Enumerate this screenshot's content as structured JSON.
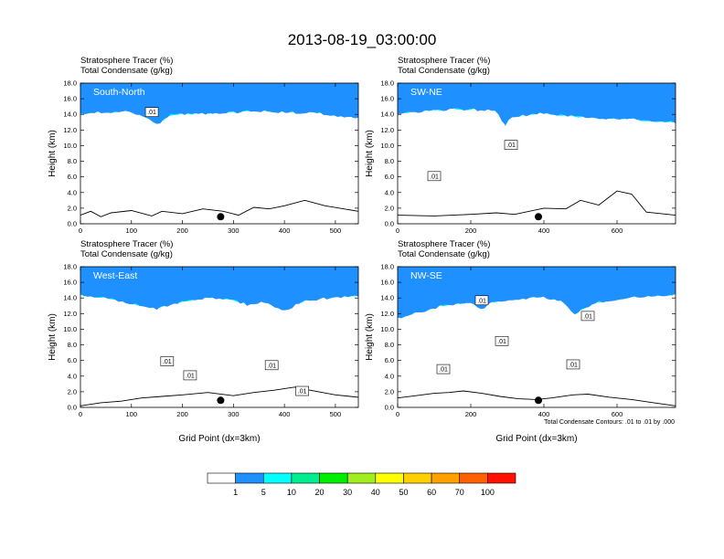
{
  "title": "2013-08-19_03:00:00",
  "chart_data": [
    {
      "type": "contour",
      "panel_name": "South-North",
      "header_line1": "Stratosphere Tracer   (%)",
      "header_line2": "Total Condensate   (g/kg)",
      "ylabel": "Height (km)",
      "xlabel": "",
      "xlim": [
        0,
        545
      ],
      "ylim": [
        0,
        18
      ],
      "xticks": [
        0,
        100,
        200,
        300,
        400,
        500
      ],
      "yticks": [
        "0.0",
        "2.0",
        "4.0",
        "6.0",
        "8.0",
        "10.0",
        "12.0",
        "14.0",
        "16.0",
        "18.0"
      ],
      "marker_x": 275,
      "tracer_base_km": [
        [
          0,
          14.0
        ],
        [
          40,
          14.2
        ],
        [
          90,
          14.4
        ],
        [
          120,
          13.9
        ],
        [
          150,
          12.6
        ],
        [
          175,
          13.9
        ],
        [
          250,
          14.1
        ],
        [
          300,
          14.2
        ],
        [
          350,
          14.4
        ],
        [
          410,
          14.2
        ],
        [
          450,
          14.2
        ],
        [
          500,
          13.8
        ],
        [
          545,
          13.6
        ]
      ],
      "terrain_km": [
        [
          0,
          1.1
        ],
        [
          20,
          1.6
        ],
        [
          40,
          0.9
        ],
        [
          60,
          1.4
        ],
        [
          100,
          1.7
        ],
        [
          140,
          1.0
        ],
        [
          160,
          1.6
        ],
        [
          200,
          1.3
        ],
        [
          240,
          1.9
        ],
        [
          280,
          1.6
        ],
        [
          310,
          1.1
        ],
        [
          340,
          2.1
        ],
        [
          370,
          1.9
        ],
        [
          400,
          2.3
        ],
        [
          440,
          3.0
        ],
        [
          480,
          2.3
        ],
        [
          545,
          1.6
        ]
      ],
      "contour_labels": [
        {
          "x": 140,
          "km": 14.3,
          "text": ".01"
        }
      ]
    },
    {
      "type": "contour",
      "panel_name": "SW-NE",
      "header_line1": "Stratosphere Tracer   (%)",
      "header_line2": "Total Condensate   (g/kg)",
      "ylabel": "Height (km)",
      "xlabel": "",
      "xlim": [
        0,
        760
      ],
      "ylim": [
        0,
        18
      ],
      "xticks": [
        0,
        200,
        400,
        600
      ],
      "yticks": [
        "0.0",
        "2.0",
        "4.0",
        "6.0",
        "8.0",
        "10.0",
        "12.0",
        "14.0",
        "16.0",
        "18.0"
      ],
      "marker_x": 385,
      "tracer_base_km": [
        [
          0,
          14.1
        ],
        [
          150,
          14.6
        ],
        [
          270,
          14.5
        ],
        [
          295,
          12.4
        ],
        [
          310,
          13.6
        ],
        [
          400,
          14.1
        ],
        [
          500,
          13.6
        ],
        [
          600,
          13.4
        ],
        [
          700,
          13.1
        ],
        [
          760,
          12.9
        ]
      ],
      "terrain_km": [
        [
          0,
          1.1
        ],
        [
          100,
          1.0
        ],
        [
          200,
          1.2
        ],
        [
          270,
          1.4
        ],
        [
          320,
          1.2
        ],
        [
          400,
          2.0
        ],
        [
          460,
          1.9
        ],
        [
          500,
          3.0
        ],
        [
          550,
          2.4
        ],
        [
          600,
          4.2
        ],
        [
          640,
          3.8
        ],
        [
          680,
          1.5
        ],
        [
          760,
          1.1
        ]
      ],
      "contour_labels": [
        {
          "x": 310,
          "km": 10.1,
          "text": ".01"
        },
        {
          "x": 100,
          "km": 6.1,
          "text": ".01"
        }
      ]
    },
    {
      "type": "contour",
      "panel_name": "West-East",
      "header_line1": "Stratosphere Tracer   (%)",
      "header_line2": "Total Condensate   (g/kg)",
      "ylabel": "Height (km)",
      "xlabel": "Grid Point (dx=3km)",
      "xlim": [
        0,
        545
      ],
      "ylim": [
        0,
        18
      ],
      "xticks": [
        0,
        100,
        200,
        300,
        400,
        500
      ],
      "yticks": [
        "0.0",
        "2.0",
        "4.0",
        "6.0",
        "8.0",
        "10.0",
        "12.0",
        "14.0",
        "16.0",
        "18.0"
      ],
      "marker_x": 275,
      "tracer_base_km": [
        [
          0,
          14.3
        ],
        [
          60,
          13.8
        ],
        [
          110,
          13.1
        ],
        [
          150,
          12.6
        ],
        [
          200,
          13.5
        ],
        [
          260,
          14.0
        ],
        [
          300,
          13.7
        ],
        [
          330,
          13.0
        ],
        [
          360,
          13.5
        ],
        [
          400,
          12.3
        ],
        [
          440,
          13.6
        ],
        [
          545,
          14.3
        ]
      ],
      "terrain_km": [
        [
          0,
          0.2
        ],
        [
          40,
          0.6
        ],
        [
          80,
          0.8
        ],
        [
          120,
          1.2
        ],
        [
          160,
          1.4
        ],
        [
          200,
          1.6
        ],
        [
          250,
          1.9
        ],
        [
          300,
          1.5
        ],
        [
          340,
          1.9
        ],
        [
          380,
          2.2
        ],
        [
          420,
          2.6
        ],
        [
          450,
          2.2
        ],
        [
          500,
          1.6
        ],
        [
          545,
          1.3
        ]
      ],
      "contour_labels": [
        {
          "x": 170,
          "km": 5.9,
          "text": ".01"
        },
        {
          "x": 215,
          "km": 4.1,
          "text": ".01"
        },
        {
          "x": 375,
          "km": 5.4,
          "text": ".01"
        },
        {
          "x": 435,
          "km": 2.1,
          "text": ".01"
        }
      ]
    },
    {
      "type": "contour",
      "panel_name": "NW-SE",
      "header_line1": "Stratosphere Tracer   (%)",
      "header_line2": "Total Condensate   (g/kg)",
      "ylabel": "Height (km)",
      "xlabel": "Grid Point (dx=3km)",
      "xlim": [
        0,
        760
      ],
      "ylim": [
        0,
        18
      ],
      "xticks": [
        0,
        200,
        400,
        600
      ],
      "yticks": [
        "0.0",
        "2.0",
        "4.0",
        "6.0",
        "8.0",
        "10.0",
        "12.0",
        "14.0",
        "16.0",
        "18.0"
      ],
      "marker_x": 385,
      "tracer_base_km": [
        [
          0,
          11.4
        ],
        [
          60,
          12.1
        ],
        [
          120,
          12.9
        ],
        [
          200,
          13.3
        ],
        [
          230,
          12.6
        ],
        [
          260,
          13.4
        ],
        [
          330,
          13.9
        ],
        [
          400,
          14.0
        ],
        [
          450,
          13.6
        ],
        [
          480,
          11.8
        ],
        [
          540,
          13.4
        ],
        [
          650,
          14.1
        ],
        [
          760,
          14.3
        ]
      ],
      "terrain_km": [
        [
          0,
          1.2
        ],
        [
          50,
          1.5
        ],
        [
          100,
          1.8
        ],
        [
          140,
          1.9
        ],
        [
          180,
          2.1
        ],
        [
          230,
          1.8
        ],
        [
          280,
          1.4
        ],
        [
          330,
          1.1
        ],
        [
          380,
          1.0
        ],
        [
          420,
          1.2
        ],
        [
          480,
          1.6
        ],
        [
          520,
          1.7
        ],
        [
          580,
          1.3
        ],
        [
          640,
          1.0
        ],
        [
          700,
          0.6
        ],
        [
          760,
          0.2
        ]
      ],
      "contour_labels": [
        {
          "x": 230,
          "km": 13.7,
          "text": ".01"
        },
        {
          "x": 520,
          "km": 11.7,
          "text": ".01"
        },
        {
          "x": 285,
          "km": 8.5,
          "text": ".01"
        },
        {
          "x": 125,
          "km": 4.9,
          "text": ".01"
        },
        {
          "x": 480,
          "km": 5.5,
          "text": ".01"
        }
      ]
    }
  ],
  "contour_note": "Total Condensate Contours: .01 to .01 by .000",
  "colorbar": {
    "colors": [
      "#ffffff",
      "#1e90ff",
      "#00ffff",
      "#00ee90",
      "#00ee00",
      "#a0ee20",
      "#ffff00",
      "#ffd000",
      "#ffa000",
      "#ff6000",
      "#ff1000"
    ],
    "labels": [
      "1",
      "5",
      "10",
      "20",
      "30",
      "40",
      "50",
      "60",
      "70",
      "100"
    ]
  }
}
